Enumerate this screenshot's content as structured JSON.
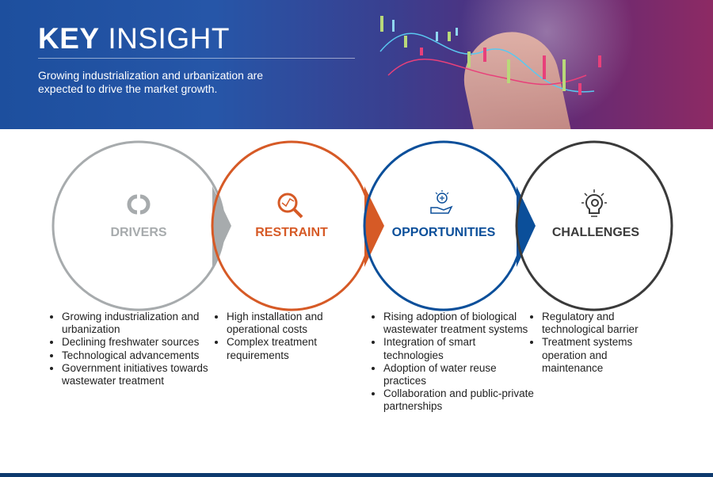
{
  "header": {
    "title_bold": "KEY",
    "title_light": "INSIGHT",
    "subtitle": "Growing industrialization and urbanization are expected to drive the market growth."
  },
  "sections": [
    {
      "label": "DRIVERS",
      "color": "#a7abad",
      "icon": "cycle-arrows-icon",
      "items": [
        "Growing industrialization and urbanization",
        "Declining freshwater sources",
        "Technological advancements",
        "Government initiatives towards wastewater treatment"
      ]
    },
    {
      "label": "RESTRAINT",
      "color": "#d65a26",
      "icon": "magnifier-chart-icon",
      "items": [
        "High installation and operational costs",
        "Complex treatment requirements"
      ]
    },
    {
      "label": "OPPORTUNITIES",
      "color": "#0b4f9a",
      "icon": "hand-idea-icon",
      "items": [
        "Rising adoption of biological wastewater treatment systems",
        "Integration of smart technologies",
        "Adoption of water reuse practices",
        "Collaboration and public-private partnerships"
      ]
    },
    {
      "label": "CHALLENGES",
      "color": "#3a3a3a",
      "icon": "lightbulb-gear-icon",
      "items": [
        "Regulatory and technological barrier",
        "Treatment systems operation and maintenance"
      ]
    }
  ]
}
